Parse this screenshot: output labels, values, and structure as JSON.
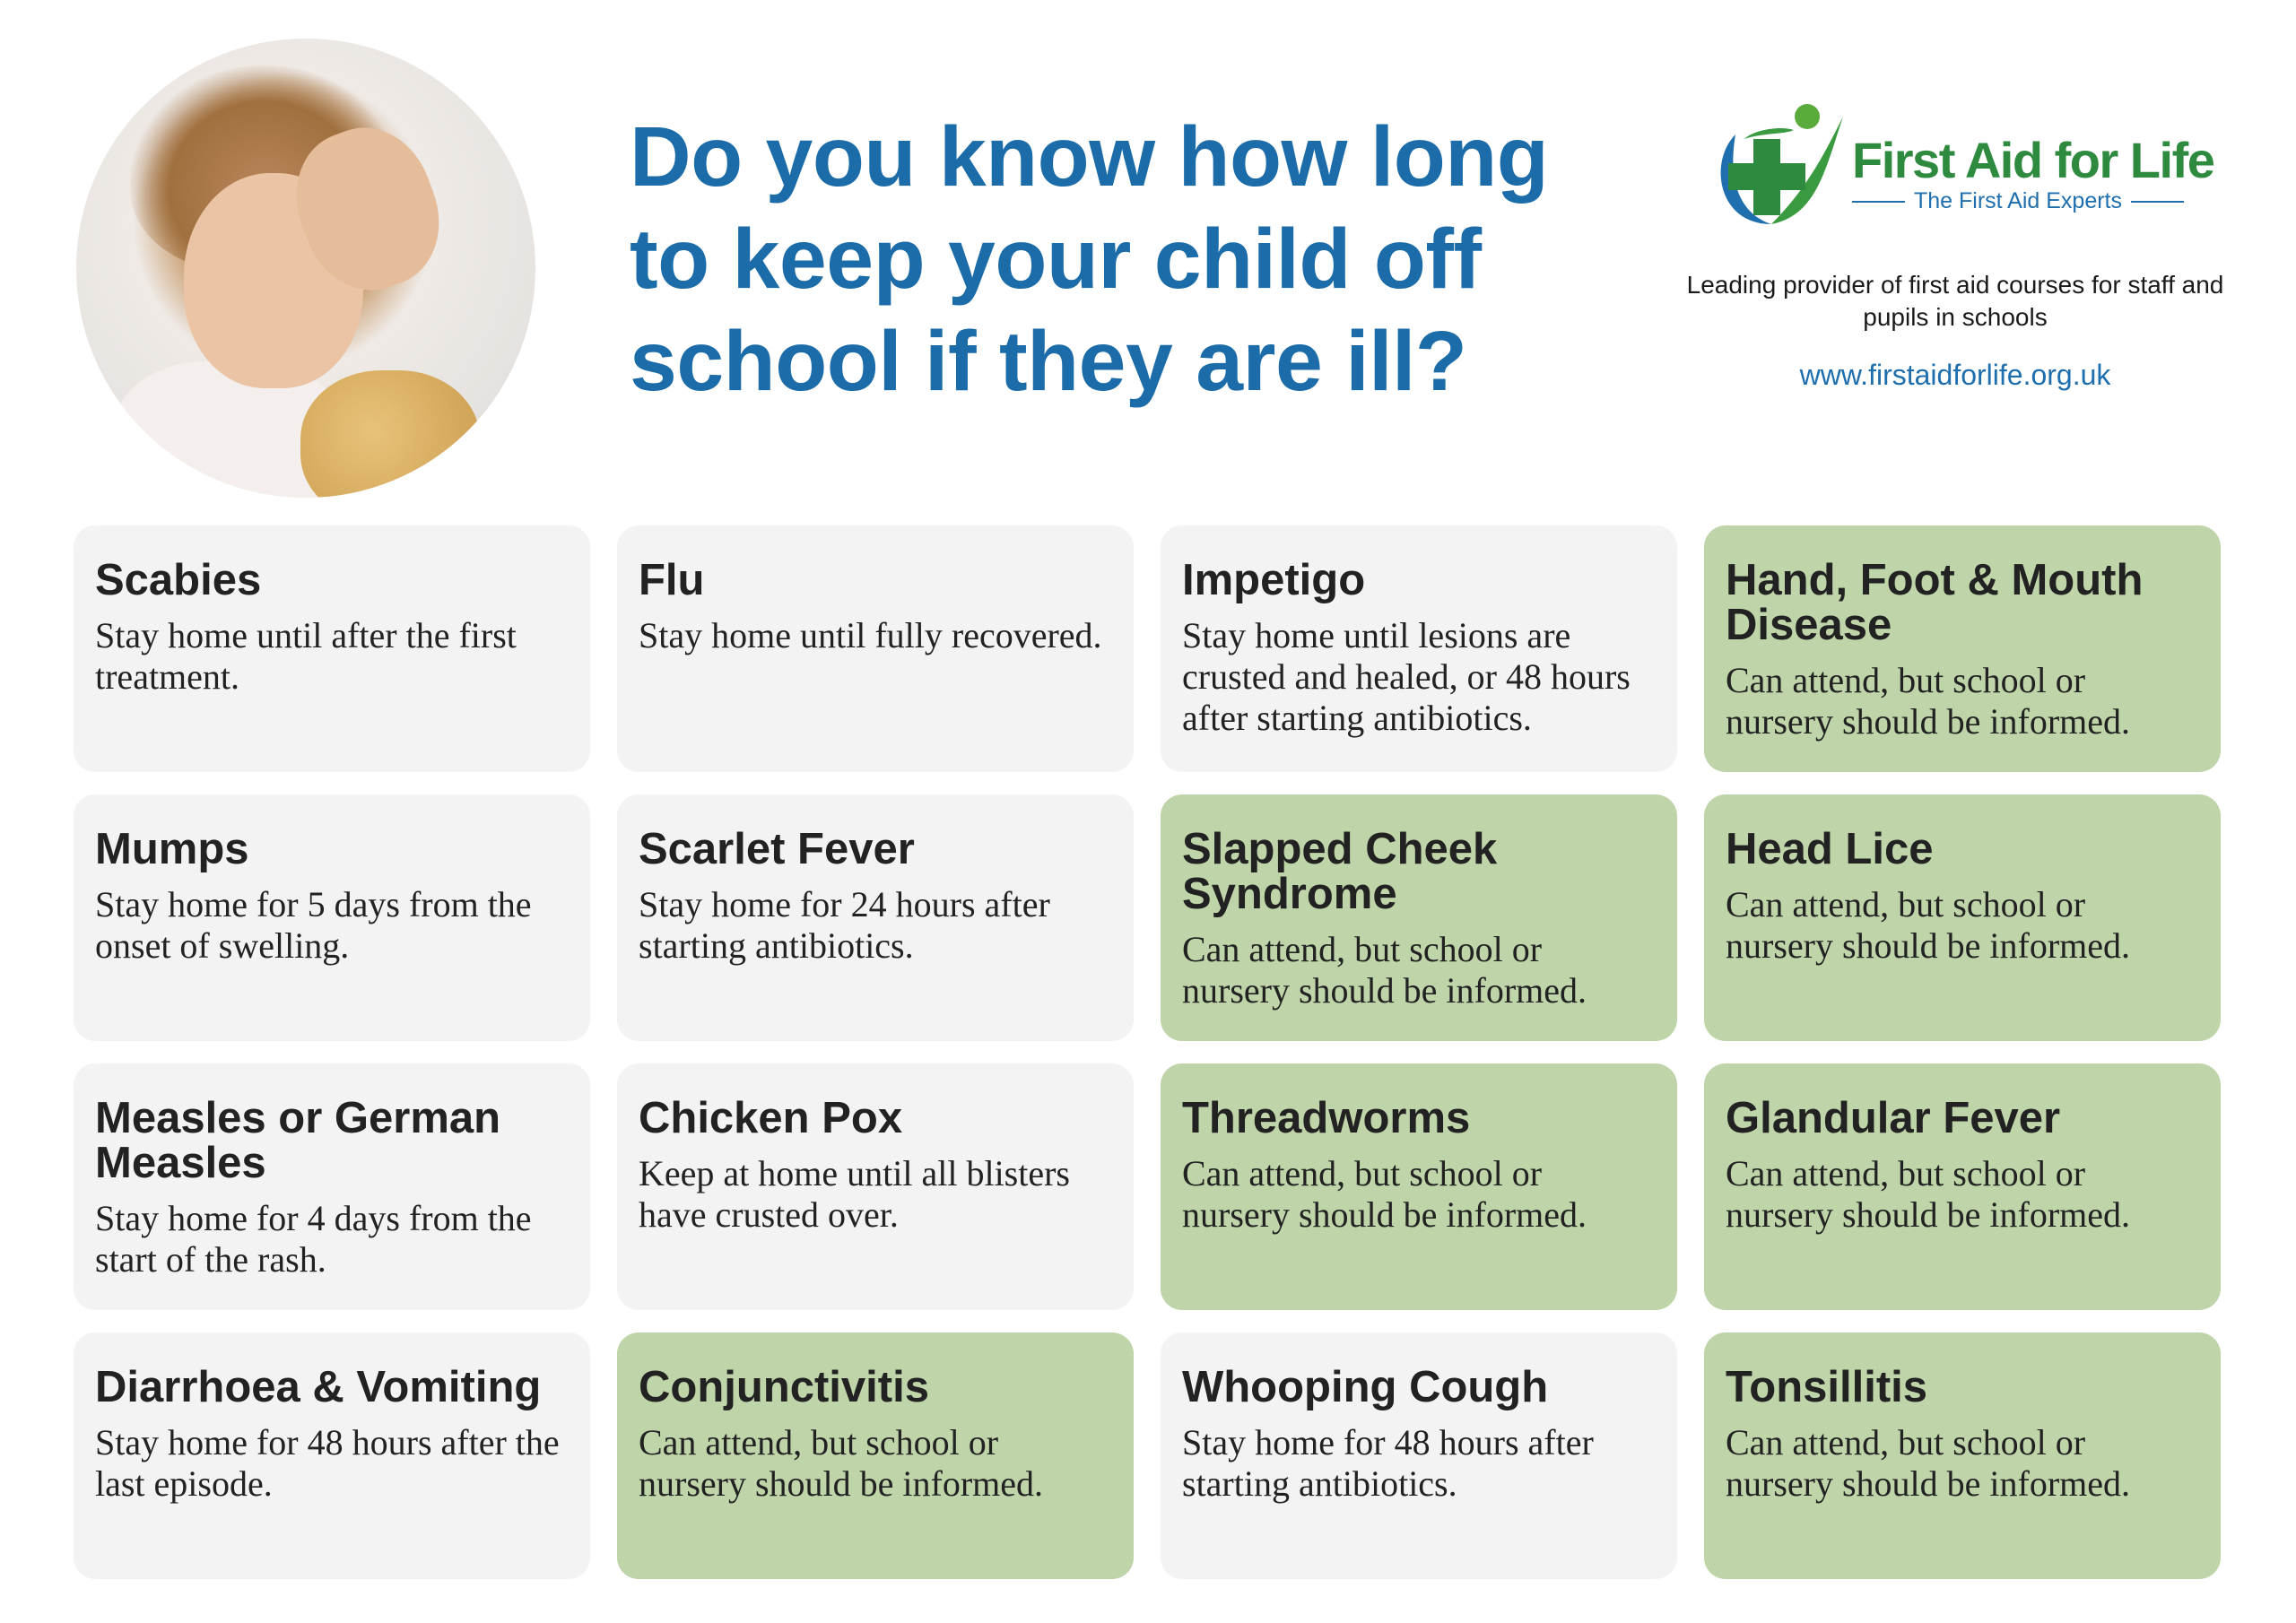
{
  "header": {
    "title_lines": [
      "Do you know how long",
      "to keep your child off",
      "school if they are ill?"
    ]
  },
  "brand": {
    "name": "First Aid for Life",
    "subtitle": "The First Aid Experts",
    "tagline": "Leading provider of first aid courses for staff and pupils in schools",
    "url": "www.firstaidforlife.org.uk",
    "colors": {
      "green": "#2d8a3e",
      "blue": "#1f6fae",
      "title_blue": "#1b6ca8",
      "card_grey": "#f3f3f3",
      "card_green": "#bfd4a8"
    }
  },
  "cards": [
    {
      "title": "Scabies",
      "text": "Stay home until after the first treatment.",
      "attend": false
    },
    {
      "title": "Flu",
      "text": "Stay home until fully recovered.",
      "attend": false
    },
    {
      "title": "Impetigo",
      "text": "Stay home until lesions are crusted and healed, or 48 hours after starting antibiotics.",
      "attend": false
    },
    {
      "title": "Hand, Foot & Mouth Disease",
      "text": "Can attend, but school or nursery should be informed.",
      "attend": true
    },
    {
      "title": "Mumps",
      "text": "Stay home for 5 days from the onset of swelling.",
      "attend": false
    },
    {
      "title": "Scarlet Fever",
      "text": "Stay home for 24 hours after starting antibiotics.",
      "attend": false
    },
    {
      "title": "Slapped Cheek Syndrome",
      "text": "Can attend, but school or nursery should be informed.",
      "attend": true
    },
    {
      "title": "Head Lice",
      "text": "Can attend, but school or nursery should be informed.",
      "attend": true
    },
    {
      "title": "Measles or German Measles",
      "text": "Stay home for 4 days from the start of the rash.",
      "attend": false
    },
    {
      "title": "Chicken Pox",
      "text": "Keep at home until all blisters have crusted over.",
      "attend": false
    },
    {
      "title": "Threadworms",
      "text": "Can attend, but school or nursery should be informed.",
      "attend": true
    },
    {
      "title": "Glandular Fever",
      "text": "Can attend, but school or nursery should be informed.",
      "attend": true
    },
    {
      "title": "Diarrhoea & Vomiting",
      "text": "Stay home for 48 hours after the last episode.",
      "attend": false
    },
    {
      "title": "Conjunctivitis",
      "text": "Can attend, but school or nursery should be informed.",
      "attend": true
    },
    {
      "title": "Whooping Cough",
      "text": "Stay home for 48 hours after starting antibiotics.",
      "attend": false
    },
    {
      "title": "Tonsillitis",
      "text": "Can attend, but school or nursery should be informed.",
      "attend": true
    }
  ]
}
